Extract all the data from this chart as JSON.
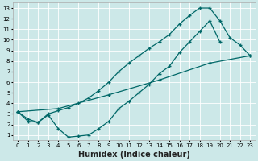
{
  "xlabel": "Humidex (Indice chaleur)",
  "xlim": [
    -0.5,
    23.5
  ],
  "ylim": [
    0.5,
    13.5
  ],
  "xticks": [
    0,
    1,
    2,
    3,
    4,
    5,
    6,
    7,
    8,
    9,
    10,
    11,
    12,
    13,
    14,
    15,
    16,
    17,
    18,
    19,
    20,
    21,
    22,
    23
  ],
  "yticks": [
    1,
    2,
    3,
    4,
    5,
    6,
    7,
    8,
    9,
    10,
    11,
    12,
    13
  ],
  "bg_color": "#cce8e8",
  "line_color": "#006868",
  "line1_x": [
    0,
    1,
    2,
    3,
    4,
    5,
    6,
    7,
    8,
    9,
    10,
    11,
    12,
    13,
    14,
    15,
    16,
    17,
    18,
    19,
    20,
    21,
    22,
    23
  ],
  "line1_y": [
    3.2,
    2.5,
    2.2,
    3.0,
    3.3,
    3.6,
    4.0,
    4.5,
    5.2,
    6.0,
    7.0,
    7.8,
    8.5,
    9.2,
    9.8,
    10.5,
    11.5,
    12.3,
    13.0,
    13.0,
    11.8,
    10.2,
    9.5,
    8.5
  ],
  "line2_x": [
    0,
    1,
    2,
    3,
    4,
    5,
    6,
    7,
    8,
    9,
    10,
    11,
    12,
    13,
    14,
    15,
    16,
    17,
    18,
    19,
    20
  ],
  "line2_y": [
    3.2,
    2.3,
    2.2,
    2.9,
    1.6,
    0.8,
    0.9,
    1.0,
    1.6,
    2.3,
    3.5,
    4.2,
    5.0,
    5.8,
    6.8,
    7.5,
    8.8,
    9.8,
    10.8,
    11.8,
    9.8
  ],
  "line3_x": [
    0,
    4,
    9,
    14,
    19,
    23
  ],
  "line3_y": [
    3.2,
    3.5,
    4.8,
    6.2,
    7.8,
    8.5
  ],
  "marker": "+",
  "markersize": 3,
  "linewidth": 0.9,
  "tick_fontsize": 5,
  "xlabel_fontsize": 7
}
